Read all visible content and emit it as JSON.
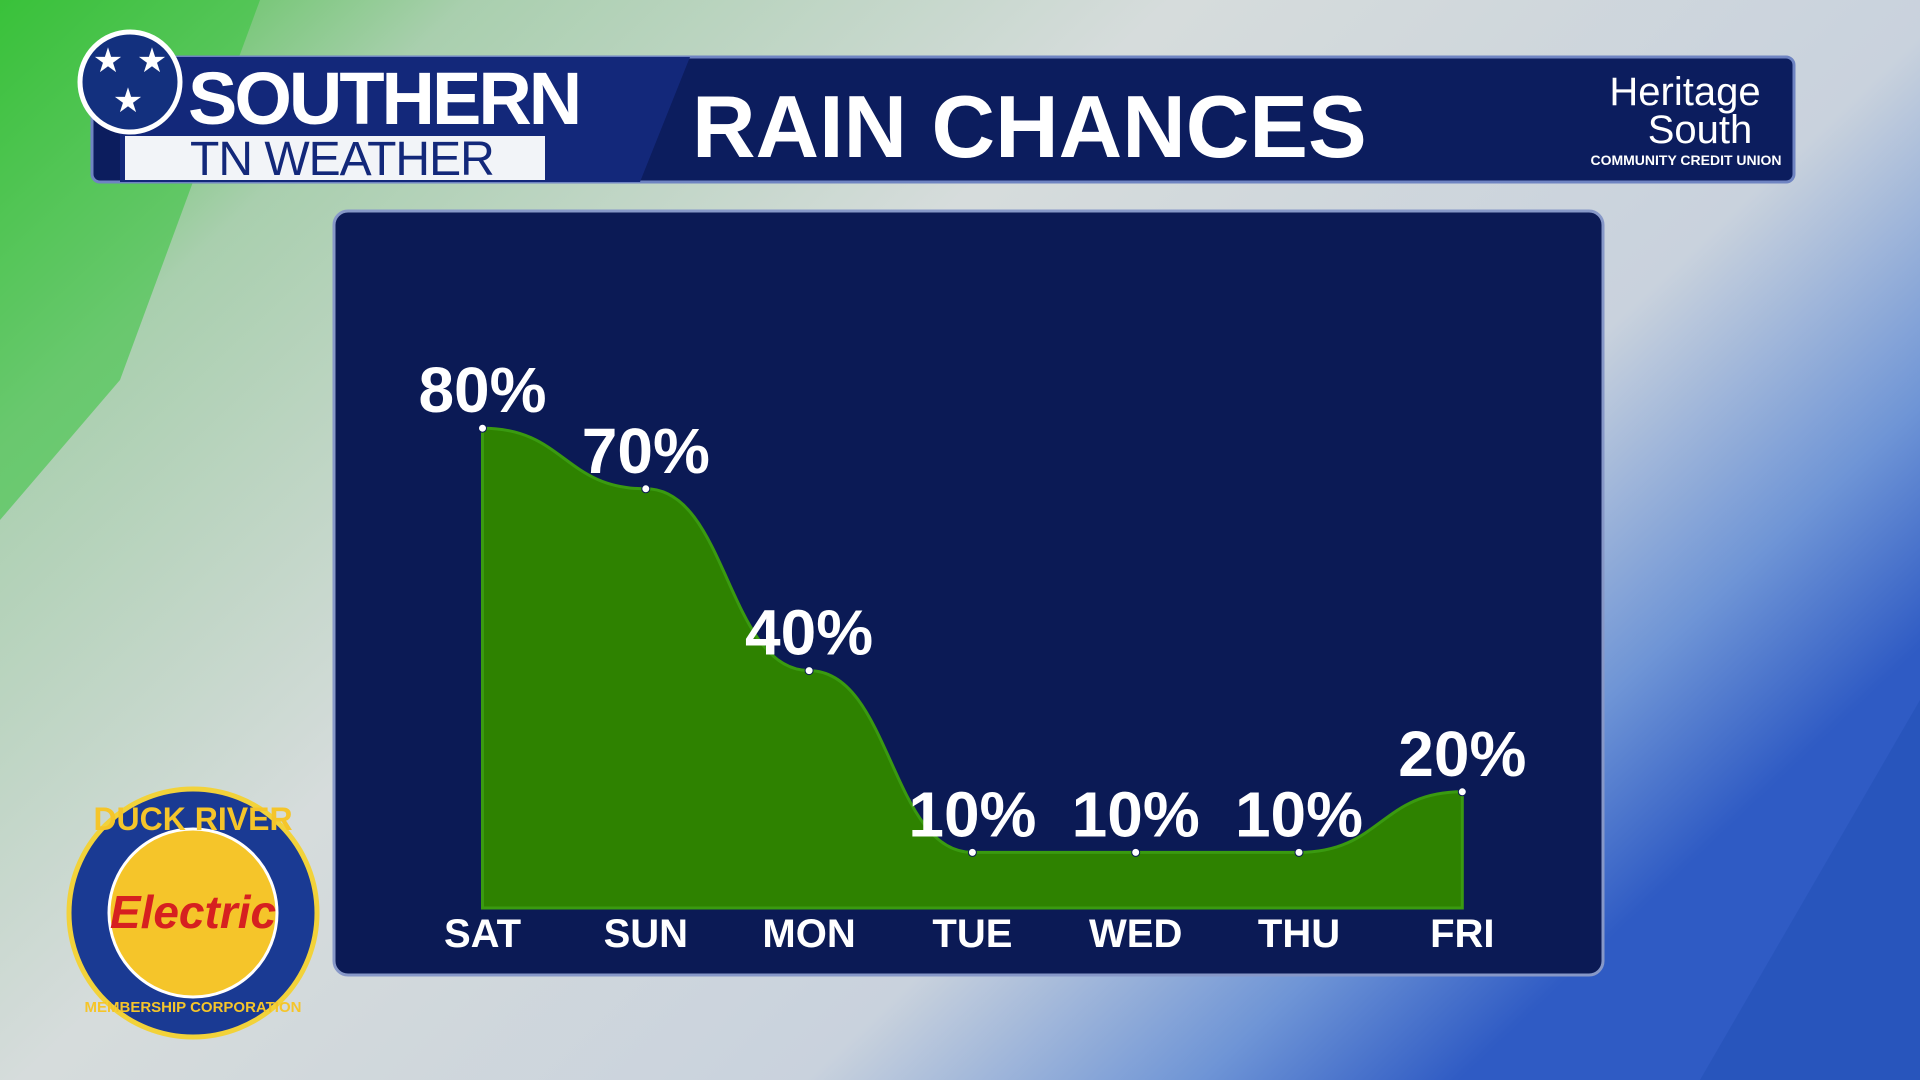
{
  "branding": {
    "show_line1": "SOUTHERN",
    "show_line2": "TN WEATHER",
    "sponsor_top": [
      "Heritage",
      "South",
      "COMMUNITY CREDIT UNION"
    ],
    "sponsor_bottom": [
      "DUCK RIVER",
      "Electric",
      "MEMBERSHIP CORPORATION"
    ]
  },
  "chart_data": {
    "type": "area",
    "title": "RAIN CHANCES",
    "categories": [
      "SAT",
      "SUN",
      "MON",
      "TUE",
      "WED",
      "THU",
      "FRI"
    ],
    "values": [
      80,
      70,
      40,
      10,
      10,
      10,
      20
    ],
    "value_labels": [
      "80%",
      "70%",
      "40%",
      "10%",
      "10%",
      "10%",
      "20%"
    ],
    "color": "#2e8200",
    "ylim": [
      0,
      100
    ]
  }
}
